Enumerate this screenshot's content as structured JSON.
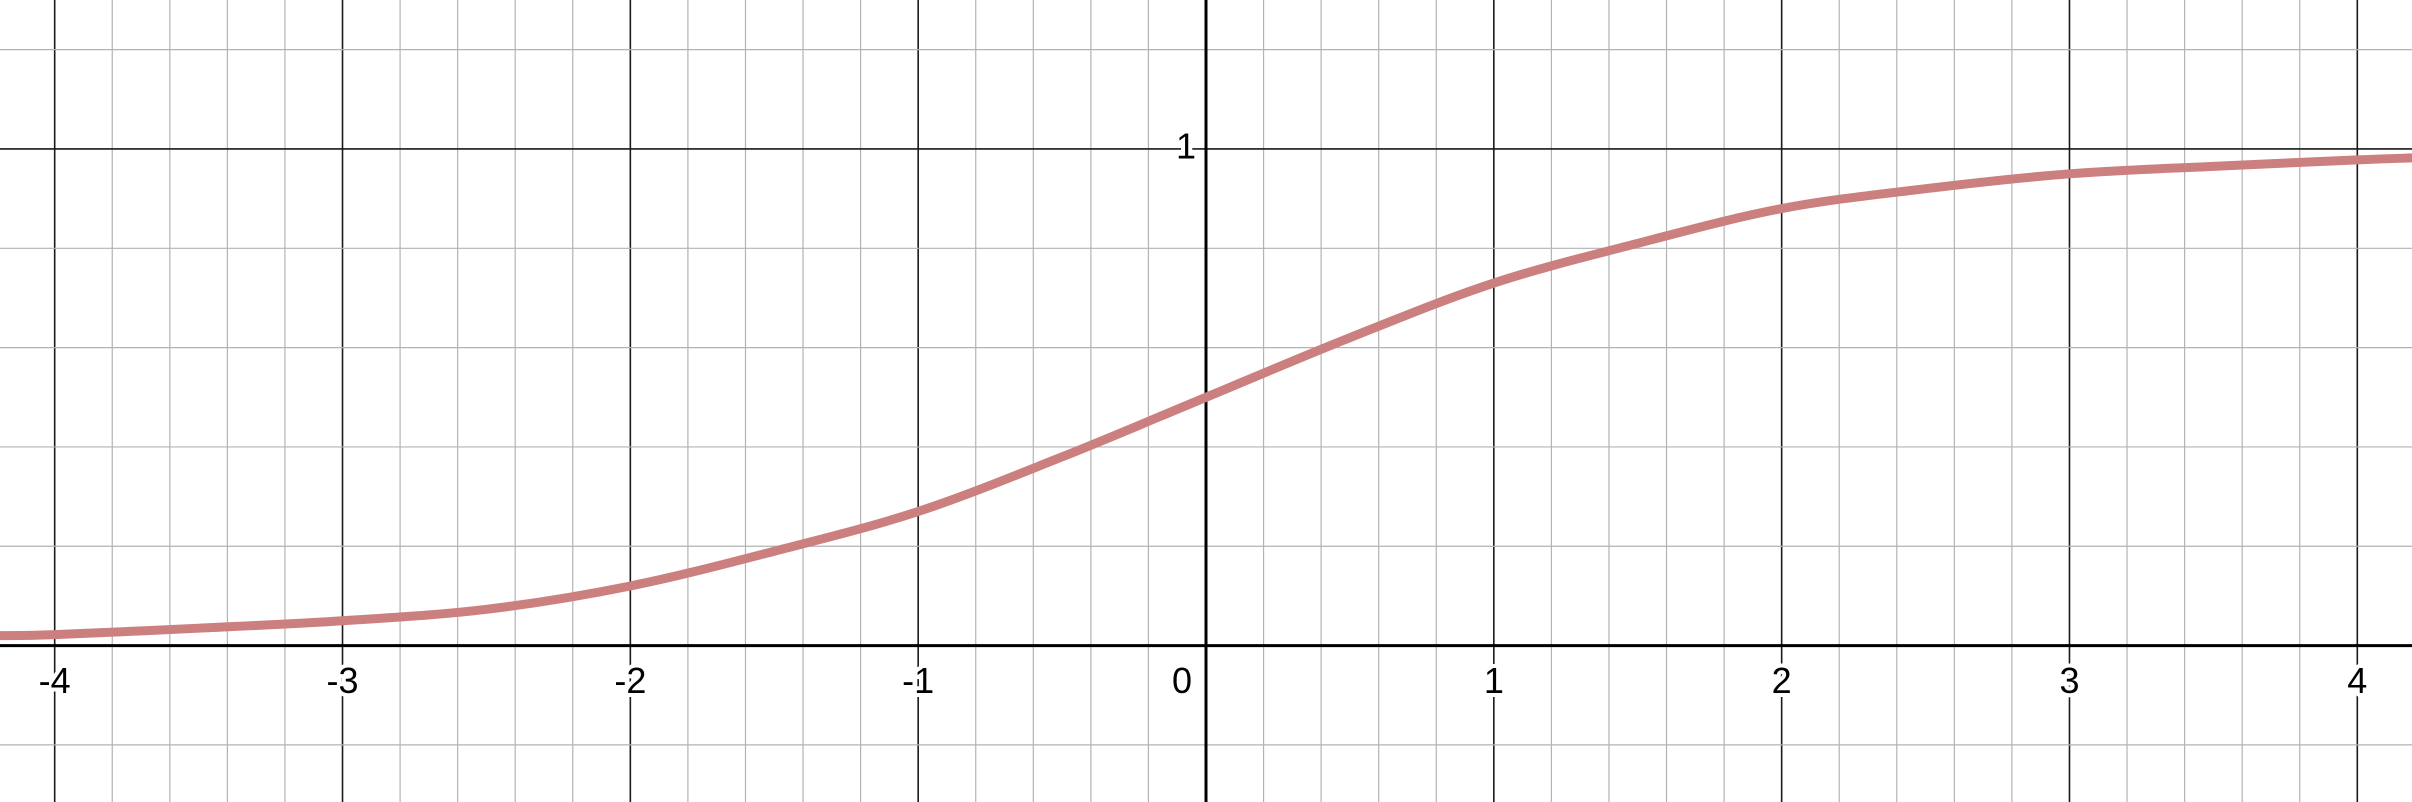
{
  "chart_data": {
    "type": "line",
    "title": "",
    "xlabel": "",
    "ylabel": "",
    "xlim": [
      -4.19,
      4.19
    ],
    "ylim": [
      -0.315,
      1.3
    ],
    "grid": true,
    "x_ticks": [
      -4,
      -3,
      -2,
      -1,
      0,
      1,
      2,
      3,
      4
    ],
    "x_tick_labels": [
      "-4",
      "-3",
      "-2",
      "-1",
      "0",
      "1",
      "2",
      "3",
      "4"
    ],
    "y_ticks": [
      1
    ],
    "y_tick_labels": [
      "1"
    ],
    "series": [
      {
        "color": "#cc7f7f",
        "x": [
          -4.19,
          -4,
          -3.5,
          -3,
          -2.5,
          -2,
          -1.5,
          -1,
          -0.5,
          0,
          0.5,
          1,
          1.5,
          2,
          2.5,
          3,
          3.5,
          4,
          4.19
        ],
        "y": [
          0.02,
          0.022,
          0.035,
          0.05,
          0.073,
          0.12,
          0.19,
          0.27,
          0.38,
          0.5,
          0.62,
          0.73,
          0.81,
          0.88,
          0.92,
          0.95,
          0.965,
          0.978,
          0.982
        ]
      }
    ]
  }
}
